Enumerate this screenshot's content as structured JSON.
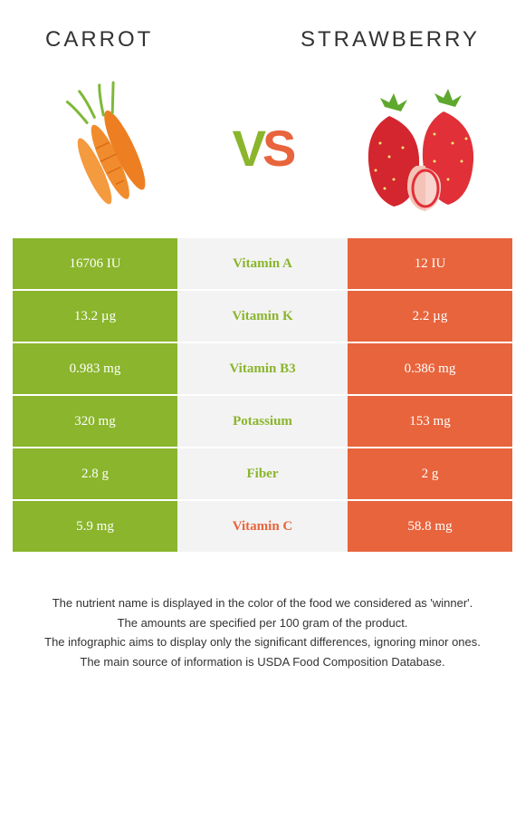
{
  "header": {
    "left": "Carrot",
    "right": "Strawberry"
  },
  "vs": {
    "v": "V",
    "s": "S"
  },
  "colors": {
    "carrot_bg": "#8ab52c",
    "strawberry_bg": "#e8643c",
    "mid_bg": "#f3f3f3",
    "carrot_text": "#8ab52c",
    "strawberry_text": "#e8643c"
  },
  "rows": [
    {
      "left": "16706 IU",
      "mid": "Vitamin A",
      "right": "12 IU",
      "winner": "carrot"
    },
    {
      "left": "13.2 µg",
      "mid": "Vitamin K",
      "right": "2.2 µg",
      "winner": "carrot"
    },
    {
      "left": "0.983 mg",
      "mid": "Vitamin B3",
      "right": "0.386 mg",
      "winner": "carrot"
    },
    {
      "left": "320 mg",
      "mid": "Potassium",
      "right": "153 mg",
      "winner": "carrot"
    },
    {
      "left": "2.8 g",
      "mid": "Fiber",
      "right": "2 g",
      "winner": "carrot"
    },
    {
      "left": "5.9 mg",
      "mid": "Vitamin C",
      "right": "58.8 mg",
      "winner": "strawberry"
    }
  ],
  "footnotes": [
    "The nutrient name is displayed in the color of the food we considered as 'winner'.",
    "The amounts are specified per 100 gram of the product.",
    "The infographic aims to display only the significant differences, ignoring minor ones.",
    "The main source of information is USDA Food Composition Database."
  ]
}
